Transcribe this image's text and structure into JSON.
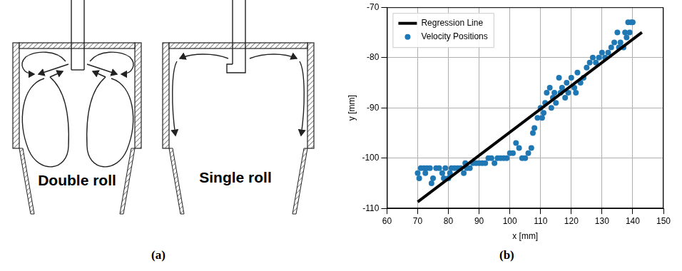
{
  "diagram": {
    "label": "(a)",
    "captions": [
      "Double roll",
      "Single roll"
    ]
  },
  "chart_label": "(b)",
  "chart_data": {
    "type": "scatter",
    "x_label": "x [mm]",
    "y_label": "y [mm]",
    "xlim": [
      60,
      150
    ],
    "xticks": [
      60,
      70,
      80,
      90,
      100,
      110,
      120,
      130,
      140,
      150
    ],
    "ylim": [
      -110,
      -70
    ],
    "yticks": [
      -110,
      -100,
      -90,
      -80,
      -70
    ],
    "grid": true,
    "legend": "upper left",
    "series": [
      {
        "name": "Regression Line",
        "type": "line",
        "color": "#000000",
        "line_style": "solid",
        "x": [
          70,
          143
        ],
        "values": [
          -108.7,
          -75
        ]
      },
      {
        "name": "Velocity Positions",
        "type": "scatter",
        "color": "#1f77b4",
        "marker": "circle",
        "x": [
          70,
          70.5,
          71,
          72,
          72.5,
          73,
          74,
          74.5,
          75,
          76,
          77,
          78,
          78.5,
          79,
          80,
          80.5,
          81,
          82,
          83,
          84,
          85,
          85.5,
          86,
          87,
          88,
          89,
          90,
          91,
          92,
          93,
          94,
          95,
          96,
          97,
          98,
          99,
          100,
          101,
          102,
          103,
          104,
          105,
          106,
          107,
          107.5,
          108,
          109,
          110,
          110.5,
          111,
          111.5,
          112,
          113,
          113.5,
          114,
          114.5,
          115,
          116,
          116.5,
          117,
          118,
          118.5,
          119,
          120,
          121,
          121.5,
          122,
          123,
          124,
          125,
          126,
          127,
          128,
          129,
          130,
          131,
          132,
          133,
          134,
          135,
          135.5,
          136,
          137,
          137.5,
          138,
          138.5,
          139,
          139.5,
          140
        ],
        "values": [
          -103,
          -104,
          -102,
          -102,
          -103,
          -102,
          -102,
          -105,
          -104,
          -102,
          -102,
          -103,
          -104,
          -102,
          -104,
          -103,
          -102,
          -102,
          -102,
          -102,
          -103,
          -101,
          -102,
          -102,
          -101,
          -101,
          -101,
          -101,
          -101,
          -100,
          -100,
          -101,
          -100,
          -100,
          -100,
          -100,
          -99,
          -99,
          -97,
          -98,
          -100,
          -100,
          -99,
          -98,
          -95,
          -94,
          -92,
          -90,
          -92,
          -91,
          -89,
          -87,
          -86,
          -90,
          -88,
          -87,
          -89,
          -84,
          -87,
          -86,
          -88,
          -85,
          -87,
          -84,
          -86,
          -87,
          -83,
          -85,
          -84,
          -82,
          -81,
          -80,
          -81,
          -80,
          -79,
          -80,
          -79,
          -78,
          -77,
          -75,
          -78,
          -77,
          -78,
          -75,
          -76,
          -73,
          -75,
          -73,
          -73
        ]
      }
    ]
  }
}
